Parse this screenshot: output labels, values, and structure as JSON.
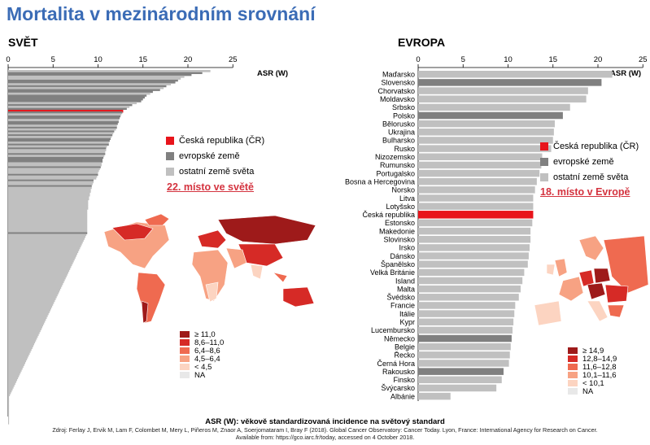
{
  "title": "Mortalita v mezinárodním srovnání",
  "legend_items": [
    {
      "label": "Česká republika (ČR)",
      "color": "#e8141b"
    },
    {
      "label": "evropské země",
      "color": "#808080"
    },
    {
      "label": "ostatní země světa",
      "color": "#c0c0c0"
    }
  ],
  "map_legend_world": [
    {
      "label": "≥ 11,0",
      "color": "#9e1a1a"
    },
    {
      "label": "8,6–11,0",
      "color": "#d62a26"
    },
    {
      "label": "6,4–8,6",
      "color": "#ef6a50"
    },
    {
      "label": "4,5–6,4",
      "color": "#f7a283"
    },
    {
      "label": "< 4,5",
      "color": "#fcd4c1"
    },
    {
      "label": "NA",
      "color": "#e8e8e8"
    }
  ],
  "map_legend_europe": [
    {
      "label": "≥ 14,9",
      "color": "#9e1a1a"
    },
    {
      "label": "12,8–14,9",
      "color": "#d62a26"
    },
    {
      "label": "11,6–12,8",
      "color": "#ef6a50"
    },
    {
      "label": "10,1–11,6",
      "color": "#f7a283"
    },
    {
      "label": "< 10,1",
      "color": "#fcd4c1"
    },
    {
      "label": "NA",
      "color": "#e8e8e8"
    }
  ],
  "footer": {
    "definition": "ASR (W): věkově standardizovaná incidence na světový standard",
    "source": "Zdroj: Ferlay J, Ervik M, Lam F, Colombet M, Mery L, Piñeros M, Znaor A, Soerjomataram I, Bray F (2018). Global Cancer Observatory: Cancer Today. Lyon, France: International Agency for Research on Cancer.",
    "available": "Available from: https://gco.iarc.fr/today, accessed on 4 October 2018."
  },
  "chart_data": [
    {
      "type": "bar",
      "orientation": "horizontal",
      "title": "SVĚT",
      "xlabel": "ASR (W)",
      "xlim": [
        0,
        25
      ],
      "xticks": [
        0,
        5,
        10,
        15,
        20,
        25
      ],
      "rank_label": "22. místo ve světě",
      "legend": [
        "Česká republika (ČR)",
        "evropské země",
        "ostatní země světa"
      ],
      "series": [
        {
          "name": "Česká republika (ČR)",
          "color": "#e8141b",
          "values": [
            null,
            null,
            null,
            null,
            null,
            null,
            null,
            null,
            null,
            null,
            null,
            null,
            null,
            null,
            null,
            null,
            null,
            null,
            null,
            null,
            null,
            12.8,
            null,
            null,
            null,
            null,
            null,
            null,
            null,
            null,
            null,
            null,
            null,
            null,
            null,
            null,
            null,
            null,
            null,
            null,
            null,
            null,
            null,
            null,
            null,
            null,
            null,
            null,
            null,
            null,
            null,
            null,
            null,
            null,
            null,
            null,
            null,
            null,
            null,
            null,
            null,
            null,
            null,
            null,
            null,
            null,
            null,
            null,
            null,
            null,
            null,
            null,
            null,
            null,
            null,
            null,
            null,
            null,
            null,
            null,
            null,
            null,
            null,
            null,
            null,
            null,
            null,
            null,
            null,
            null,
            null,
            null,
            null,
            null,
            null,
            null,
            null,
            null,
            null,
            null,
            null,
            null,
            null,
            null,
            null,
            null,
            null,
            null,
            null,
            null,
            null,
            null,
            null,
            null,
            null,
            null,
            null,
            null,
            null,
            null,
            null,
            null,
            null,
            null,
            null,
            null,
            null,
            null,
            null,
            null,
            null,
            null,
            null,
            null,
            null,
            null,
            null,
            null,
            null,
            null,
            null,
            null,
            null,
            null,
            null,
            null,
            null,
            null,
            null,
            null,
            null,
            null,
            null,
            null,
            null,
            null,
            null,
            null,
            null,
            null,
            null,
            null,
            null,
            null,
            null,
            null,
            null,
            null,
            null,
            null,
            null,
            null,
            null,
            null,
            null,
            null,
            null,
            null,
            null,
            null,
            null,
            null,
            null,
            null
          ]
        },
        {
          "name": "evropské země",
          "color": "#808080",
          "values": [
            null,
            21.6,
            20.4,
            null,
            null,
            18.9,
            18.6,
            null,
            17.6,
            null,
            16.9,
            16.1,
            null,
            15.4,
            15.2,
            15.0,
            14.8,
            null,
            13.8,
            null,
            13.2,
            null,
            12.7,
            null,
            12.5,
            12.4,
            null,
            12.3,
            12.2,
            null,
            12.1,
            null,
            11.8,
            null,
            11.6,
            null,
            11.4,
            11.3,
            null,
            11.2,
            null,
            10.9,
            null,
            null,
            10.8,
            null,
            10.6,
            10.5,
            10.5,
            null,
            null,
            10.3,
            null,
            null,
            null,
            10.0,
            null,
            null,
            9.5,
            null,
            null,
            9.3,
            null,
            null,
            null,
            null,
            null,
            null,
            null,
            null,
            null,
            null,
            null,
            null,
            null,
            null,
            null,
            null,
            null,
            null,
            null,
            null,
            null,
            null,
            null,
            null,
            8.8,
            null,
            null,
            null,
            null,
            null,
            null,
            null,
            null,
            null,
            null,
            null,
            null,
            null,
            null,
            null,
            null,
            null,
            null,
            null,
            null,
            null,
            null,
            null,
            null,
            null,
            null,
            null,
            null,
            null,
            null,
            null,
            null,
            null,
            null,
            null,
            null,
            null,
            null,
            null,
            null,
            null,
            null,
            null,
            null,
            null,
            null,
            null,
            null,
            null,
            null,
            null,
            null,
            null,
            null,
            null,
            null,
            null,
            null,
            null,
            null,
            null,
            null,
            null,
            null,
            null,
            null,
            null,
            null,
            null,
            null,
            null,
            null,
            null,
            null,
            null,
            null,
            null,
            null,
            null,
            null,
            null,
            null,
            null,
            null,
            null,
            null,
            null,
            null,
            null,
            null,
            null,
            null,
            null,
            null,
            null,
            null,
            null,
            null,
            null,
            null,
            null,
            null,
            null,
            null
          ]
        },
        {
          "name": "ostatní země světa",
          "color": "#c0c0c0",
          "values": [
            22.5,
            null,
            null,
            19.6,
            19.2,
            null,
            null,
            18.1,
            null,
            17.3,
            null,
            null,
            15.8,
            null,
            null,
            null,
            null,
            14.3,
            null,
            13.5,
            null,
            null,
            null,
            12.6,
            null,
            null,
            12.3,
            null,
            null,
            12.1,
            null,
            12.0,
            null,
            11.7,
            null,
            11.5,
            null,
            null,
            11.2,
            null,
            11.0,
            null,
            10.9,
            10.8,
            null,
            10.7,
            null,
            null,
            null,
            10.4,
            10.4,
            null,
            10.2,
            10.1,
            10.0,
            null,
            9.9,
            9.8,
            null,
            9.5,
            9.4,
            null,
            9.3,
            9.2,
            9.2,
            9.1,
            9.1,
            9.0,
            9.0,
            8.9,
            8.9,
            8.9,
            8.9,
            8.9,
            8.8,
            8.8,
            8.8,
            8.8,
            8.8,
            8.8,
            8.8,
            8.8,
            8.8,
            8.8,
            8.8,
            8.8,
            null,
            8.7,
            8.6,
            8.5,
            8.4,
            8.3,
            8.2,
            8.1,
            8.0,
            7.9,
            7.8,
            7.7,
            7.6,
            7.5,
            7.4,
            7.3,
            7.2,
            7.1,
            7.0,
            6.9,
            6.8,
            6.7,
            6.6,
            6.5,
            6.4,
            6.3,
            6.2,
            6.1,
            6.0,
            5.9,
            5.8,
            5.7,
            5.6,
            5.5,
            5.4,
            5.3,
            5.2,
            5.1,
            5.0,
            4.9,
            4.8,
            4.7,
            4.6,
            4.5,
            4.4,
            4.3,
            4.2,
            4.1,
            4.0,
            3.9,
            3.8,
            3.7,
            3.6,
            3.5,
            3.4,
            3.3,
            3.2,
            3.1,
            3.0,
            2.9,
            2.8,
            2.7,
            2.6,
            2.5,
            2.4,
            2.3,
            2.2,
            2.1,
            2.0,
            1.9,
            1.8,
            1.7,
            1.6,
            1.5,
            1.4,
            1.3,
            1.2,
            1.1,
            1.0,
            0.9,
            0.8,
            0.7,
            0.6,
            0.5,
            0.4,
            0.3,
            0.2,
            0.1,
            0.1,
            0.1,
            0.1,
            0.1,
            0.1,
            0.1,
            0.1,
            0.1,
            0.1,
            0.1,
            0.1,
            0.1,
            0.1,
            0.1
          ]
        }
      ]
    },
    {
      "type": "bar",
      "orientation": "horizontal",
      "title": "EVROPA",
      "xlabel": "ASR (W)",
      "xlim": [
        0,
        25
      ],
      "xticks": [
        0,
        5,
        10,
        15,
        20,
        25
      ],
      "rank_label": "18. místo v Evropě",
      "legend": [
        "Česká republika (ČR)",
        "evropské země",
        "ostatní země světa"
      ],
      "categories": [
        "Maďarsko",
        "Slovensko",
        "Chorvatsko",
        "Moldavsko",
        "Srbsko",
        "Polsko",
        "Bělorusko",
        "Ukrajina",
        "Bulharsko",
        "Rusko",
        "Nizozemsko",
        "Rumunsko",
        "Portugalsko",
        "Bosna a Hercegovina",
        "Norsko",
        "Litva",
        "Lotyšsko",
        "Česká republika",
        "Estonsko",
        "Makedonie",
        "Slovinsko",
        "Irsko",
        "Dánsko",
        "Španělsko",
        "Velká Británie",
        "Island",
        "Malta",
        "Švédsko",
        "Francie",
        "Itálie",
        "Kypr",
        "Lucembursko",
        "Německo",
        "Belgie",
        "Řecko",
        "Černá Hora",
        "Rakousko",
        "Finsko",
        "Švýcarsko",
        "Albánie"
      ],
      "values": [
        21.6,
        20.4,
        18.9,
        18.7,
        16.9,
        16.1,
        15.2,
        15.1,
        15.0,
        14.8,
        13.8,
        13.7,
        13.5,
        13.2,
        13.0,
        12.8,
        12.8,
        12.8,
        12.7,
        12.5,
        12.5,
        12.4,
        12.3,
        12.2,
        11.8,
        11.6,
        11.4,
        11.2,
        10.8,
        10.7,
        10.6,
        10.5,
        10.4,
        10.3,
        10.2,
        10.1,
        9.5,
        9.3,
        8.7,
        3.6
      ],
      "colors": [
        "#c0c0c0",
        "#808080",
        "#c0c0c0",
        "#c0c0c0",
        "#c0c0c0",
        "#808080",
        "#c0c0c0",
        "#c0c0c0",
        "#c0c0c0",
        "#c0c0c0",
        "#c0c0c0",
        "#c0c0c0",
        "#c0c0c0",
        "#c0c0c0",
        "#c0c0c0",
        "#c0c0c0",
        "#c0c0c0",
        "#e8141b",
        "#c0c0c0",
        "#c0c0c0",
        "#c0c0c0",
        "#c0c0c0",
        "#c0c0c0",
        "#c0c0c0",
        "#c0c0c0",
        "#c0c0c0",
        "#c0c0c0",
        "#c0c0c0",
        "#c0c0c0",
        "#c0c0c0",
        "#c0c0c0",
        "#c0c0c0",
        "#808080",
        "#c0c0c0",
        "#c0c0c0",
        "#c0c0c0",
        "#808080",
        "#c0c0c0",
        "#c0c0c0",
        "#c0c0c0"
      ]
    }
  ]
}
